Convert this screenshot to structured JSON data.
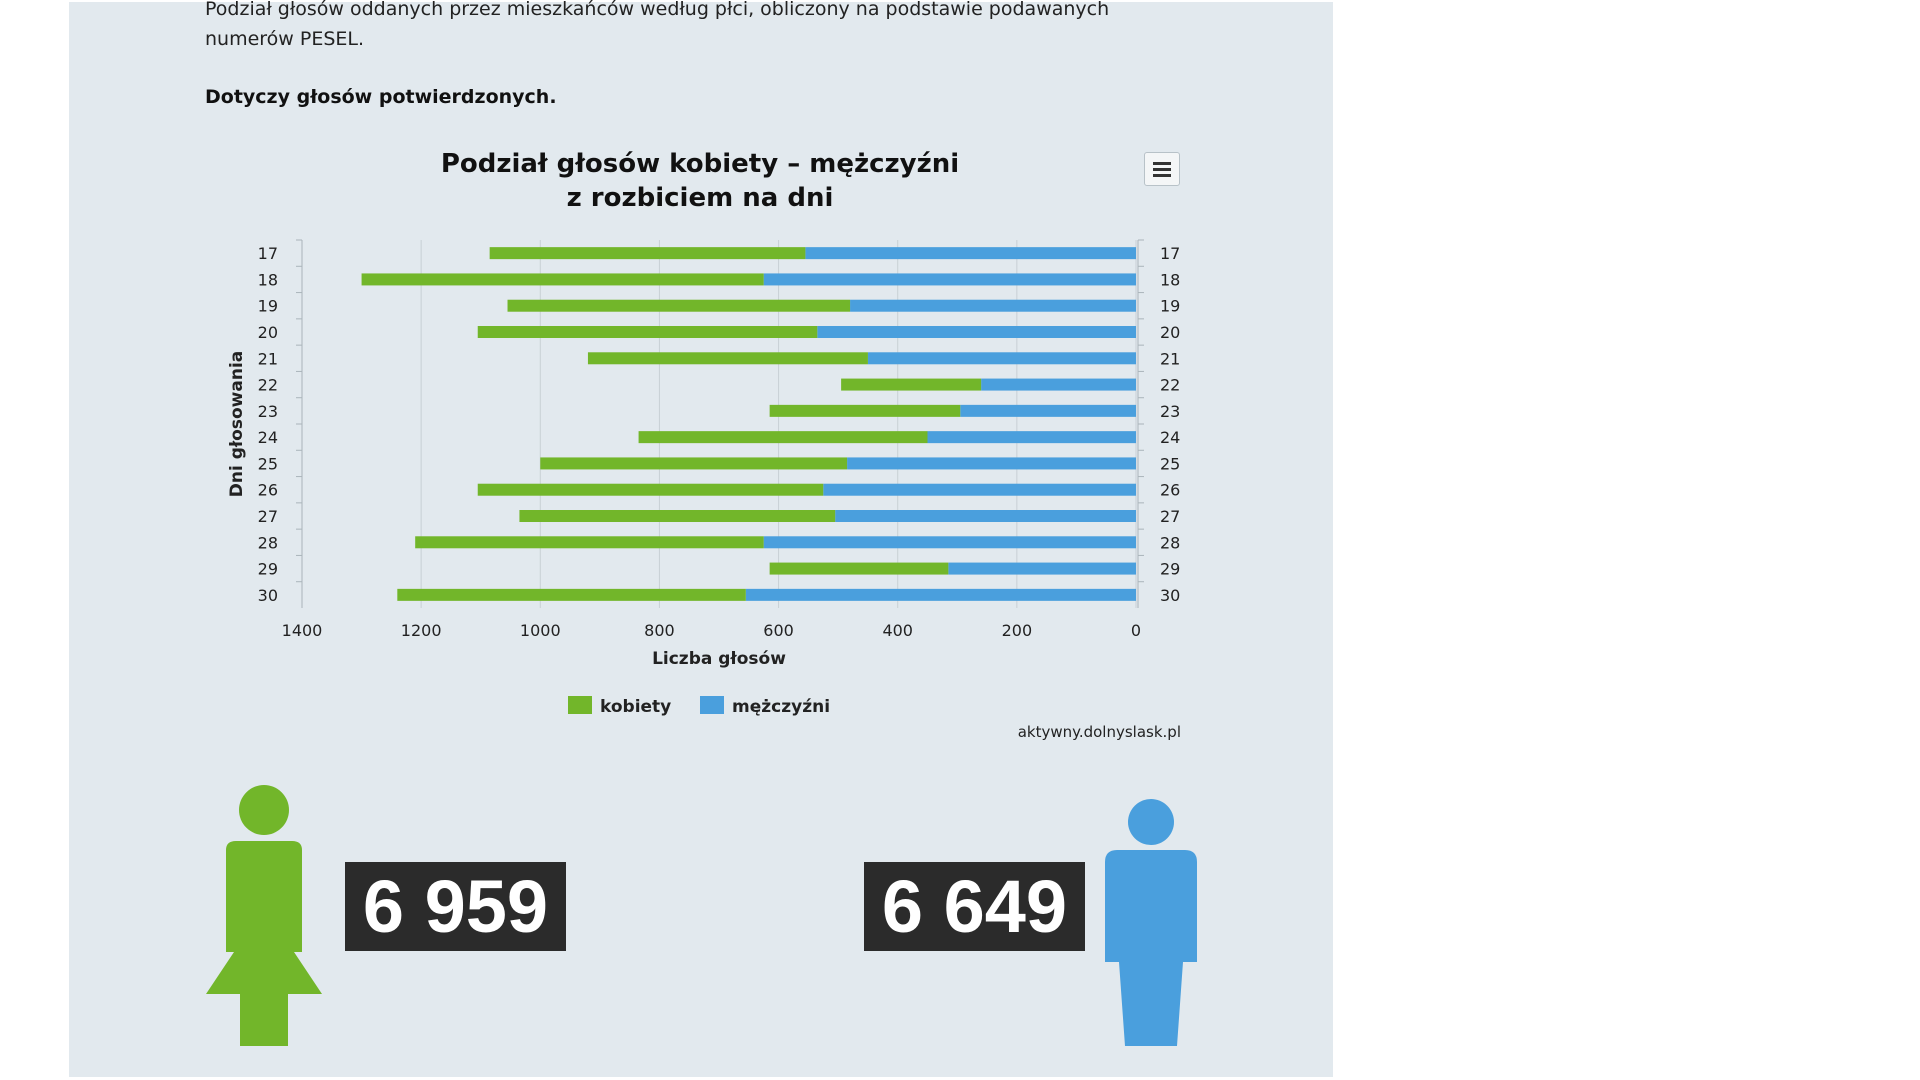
{
  "page": {
    "intro": "Podział głosów oddanych przez mieszkańców według płci, obliczony na podstawie podawanych numerów PESEL.",
    "note": "Dotyczy głosów potwierdzonych.",
    "source": "aktywny.dolnyslask.pl"
  },
  "totals": {
    "women": "6 959",
    "men": "6 649"
  },
  "colors": {
    "women": "#72b62a",
    "men": "#4a9fdd",
    "panel": "#e2e9ee",
    "box": "#2b2b2b"
  },
  "icons": {
    "menu": "hamburger-menu-icon",
    "woman": "woman-figure-icon",
    "man": "man-figure-icon"
  },
  "chart_data": {
    "type": "bar",
    "orientation": "horizontal-stacked",
    "title": "Podział głosów kobiety – mężczyźni z rozbiciem na dni",
    "title_lines": [
      "Podział głosów kobiety – mężczyźni",
      "z rozbiciem na dni"
    ],
    "xlabel": "Liczba głosów",
    "ylabel": "Dni głosowania",
    "xlim": [
      0,
      1400
    ],
    "x_reversed": true,
    "xticks": [
      1400,
      1200,
      1000,
      800,
      600,
      400,
      200,
      0
    ],
    "grid": true,
    "legend": "bottom-center",
    "categories": [
      "17",
      "18",
      "19",
      "20",
      "21",
      "22",
      "23",
      "24",
      "25",
      "26",
      "27",
      "28",
      "29",
      "30"
    ],
    "series": [
      {
        "name": "mężczyźni",
        "values": [
          555,
          625,
          480,
          535,
          450,
          260,
          295,
          350,
          485,
          525,
          505,
          625,
          315,
          655
        ]
      },
      {
        "name": "kobiety",
        "values": [
          530,
          675,
          575,
          570,
          470,
          235,
          320,
          485,
          515,
          580,
          530,
          585,
          300,
          585
        ]
      }
    ]
  }
}
